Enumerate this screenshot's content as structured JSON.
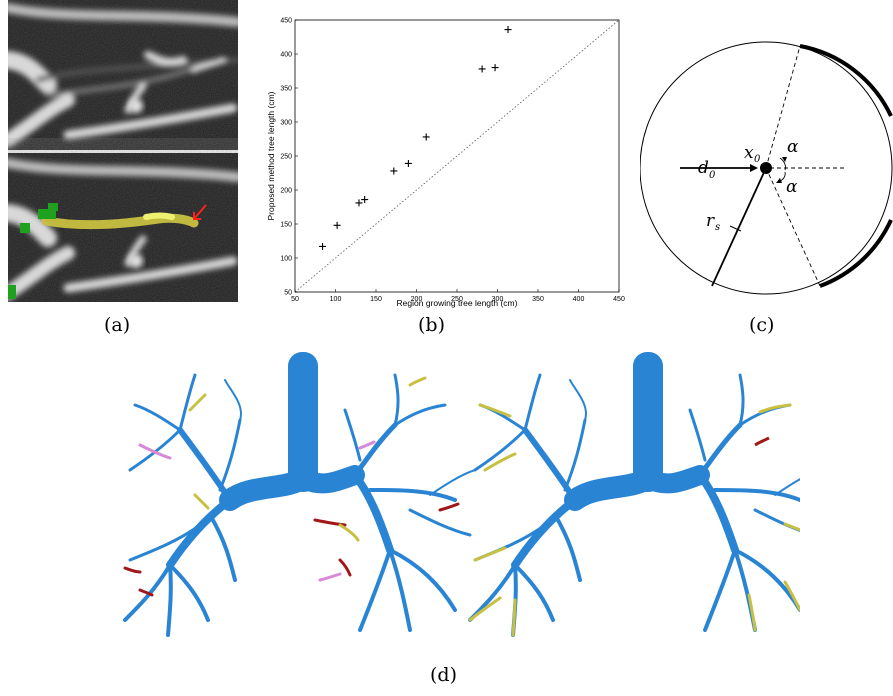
{
  "captions": {
    "a": "(a)",
    "b": "(b)",
    "c": "(c)",
    "d": "(d)"
  },
  "diagram_c": {
    "d_label": "d",
    "d_sub": "0",
    "x_label": "x",
    "x_sub": "0",
    "alpha_top": "α",
    "alpha_bottom": "α",
    "r_label": "r",
    "r_sub": "s"
  },
  "colors": {
    "airway_blue": "#2a84d4",
    "leak_yellow": "#c8c040",
    "missed_red": "#a01818",
    "extra_pink": "#d88ad8",
    "seed_green": "#1fa01f"
  },
  "chart_data": {
    "type": "scatter",
    "xlabel": "Region growing tree length (cm)",
    "ylabel": "Proposed method tree length (cm)",
    "xlim": [
      50,
      450
    ],
    "ylim": [
      50,
      450
    ],
    "xticks": [
      "50",
      "100",
      "150",
      "200",
      "250",
      "300",
      "350",
      "400",
      "450"
    ],
    "yticks": [
      "50",
      "100",
      "150",
      "200",
      "250",
      "300",
      "350",
      "400",
      "450"
    ],
    "marker": "+",
    "reference_line": "y = x (dotted)",
    "points": [
      [
        84,
        117
      ],
      [
        102,
        148
      ],
      [
        129,
        181
      ],
      [
        136,
        186
      ],
      [
        172,
        228
      ],
      [
        190,
        239
      ],
      [
        212,
        278
      ],
      [
        281,
        378
      ],
      [
        297,
        380
      ],
      [
        313,
        436
      ]
    ]
  }
}
